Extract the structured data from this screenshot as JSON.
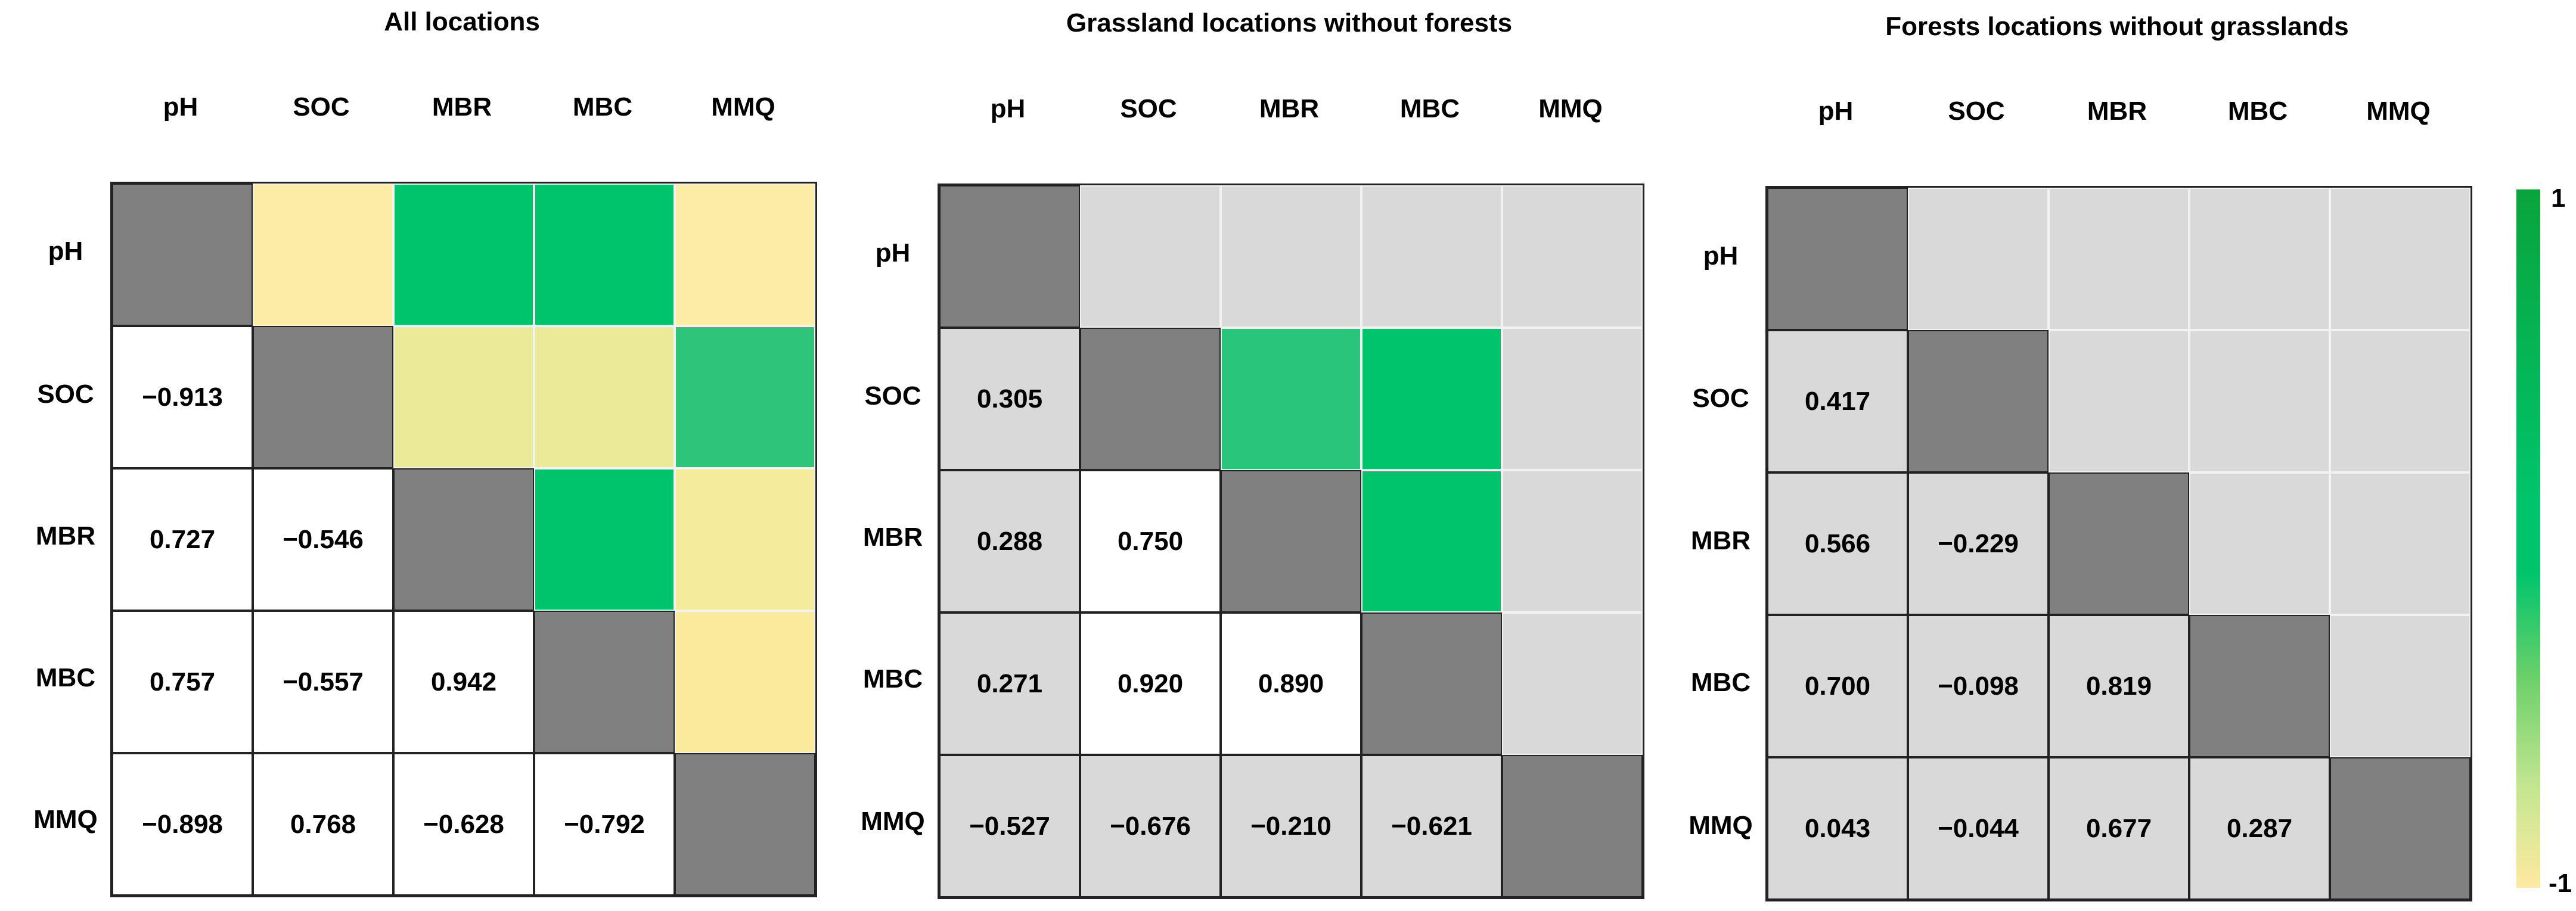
{
  "chart_data": [
    {
      "type": "heatmap",
      "title": "All locations",
      "variables": [
        "pH",
        "SOC",
        "MBR",
        "MBC",
        "MMQ"
      ],
      "lower_values": [
        [
          null,
          null,
          null,
          null,
          null
        ],
        [
          "−0.913",
          null,
          null,
          null,
          null
        ],
        [
          "0.727",
          "−0.546",
          null,
          null,
          null
        ],
        [
          "0.757",
          "−0.557",
          "0.942",
          null,
          null
        ],
        [
          "−0.898",
          "0.768",
          "−0.628",
          "−0.792",
          null
        ]
      ],
      "upper_colors": [
        [
          null,
          "#fdeca6",
          "#00c46c",
          "#00c46c",
          "#fdeca6"
        ],
        [
          null,
          null,
          "#ebea98",
          "#ebea98",
          "#2ec57a"
        ],
        [
          null,
          null,
          null,
          "#00c46c",
          "#f4eb9c"
        ],
        [
          null,
          null,
          null,
          null,
          "#fbea9c"
        ],
        [
          null,
          null,
          null,
          null,
          null
        ]
      ],
      "lower_bg": "#ffffff"
    },
    {
      "type": "heatmap",
      "title": "Grassland locations without forests",
      "variables": [
        "pH",
        "SOC",
        "MBR",
        "MBC",
        "MMQ"
      ],
      "lower_values": [
        [
          null,
          null,
          null,
          null,
          null
        ],
        [
          "0.305",
          null,
          null,
          null,
          null
        ],
        [
          "0.288",
          "0.750",
          null,
          null,
          null
        ],
        [
          "0.271",
          "0.920",
          "0.890",
          null,
          null
        ],
        [
          "−0.527",
          "−0.676",
          "−0.210",
          "−0.621",
          null
        ]
      ],
      "upper_colors": [
        [
          null,
          "#d9d9d9",
          "#d9d9d9",
          "#d9d9d9",
          "#d9d9d9"
        ],
        [
          null,
          null,
          "#28c57a",
          "#00c46c",
          "#d9d9d9"
        ],
        [
          null,
          null,
          null,
          "#00c46c",
          "#d9d9d9"
        ],
        [
          null,
          null,
          null,
          null,
          "#d9d9d9"
        ],
        [
          null,
          null,
          null,
          null,
          null
        ]
      ],
      "lower_bg": "#d9d9d9",
      "lower_bg_overrides": {
        "2-1": "#ffffff",
        "3-1": "#ffffff",
        "3-2": "#ffffff"
      }
    },
    {
      "type": "heatmap",
      "title": "Forests locations without grasslands",
      "variables": [
        "pH",
        "SOC",
        "MBR",
        "MBC",
        "MMQ"
      ],
      "lower_values": [
        [
          null,
          null,
          null,
          null,
          null
        ],
        [
          "0.417",
          null,
          null,
          null,
          null
        ],
        [
          "0.566",
          "−0.229",
          null,
          null,
          null
        ],
        [
          "0.700",
          "−0.098",
          "0.819",
          null,
          null
        ],
        [
          "0.043",
          "−0.044",
          "0.677",
          "0.287",
          null
        ]
      ],
      "upper_colors": [
        [
          null,
          "#d9d9d9",
          "#d9d9d9",
          "#d9d9d9",
          "#d9d9d9"
        ],
        [
          null,
          null,
          "#d9d9d9",
          "#d9d9d9",
          "#d9d9d9"
        ],
        [
          null,
          null,
          null,
          "#d9d9d9",
          "#d9d9d9"
        ],
        [
          null,
          null,
          null,
          null,
          "#d9d9d9"
        ],
        [
          null,
          null,
          null,
          null,
          null
        ]
      ],
      "lower_bg": "#d9d9d9"
    }
  ],
  "colorbar": {
    "max_label": "1",
    "min_label": "-1"
  },
  "colors": {
    "diagonal": "#808080",
    "grid_line": "#222222"
  }
}
